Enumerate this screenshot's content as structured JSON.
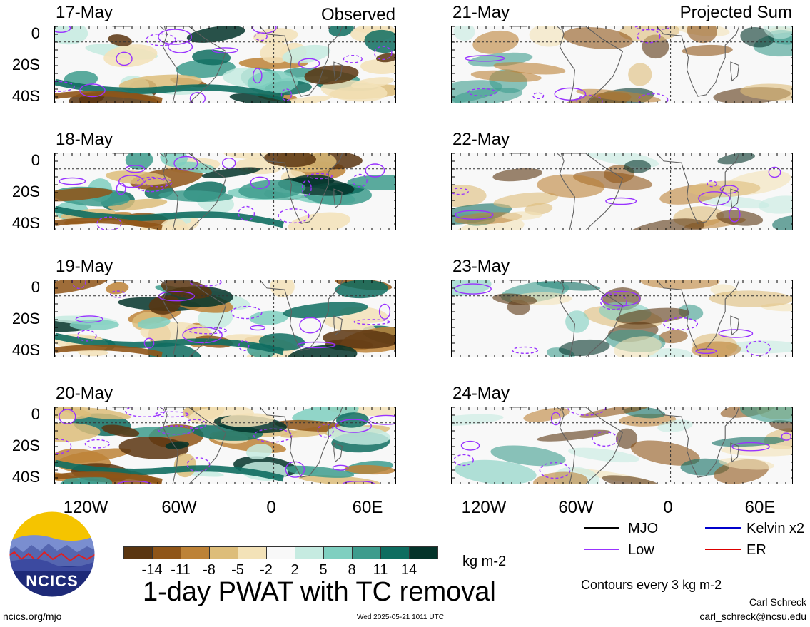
{
  "header": {
    "observed_label": "Observed",
    "projected_label": "Projected Sum"
  },
  "panels": {
    "observed": [
      {
        "date": "17-May"
      },
      {
        "date": "18-May"
      },
      {
        "date": "19-May"
      },
      {
        "date": "20-May"
      }
    ],
    "projected": [
      {
        "date": "21-May"
      },
      {
        "date": "22-May"
      },
      {
        "date": "23-May"
      },
      {
        "date": "24-May"
      }
    ]
  },
  "axes": {
    "lat_ticks": [
      "0",
      "20S",
      "40S"
    ],
    "lon_ticks": [
      "120W",
      "60W",
      "0",
      "60E"
    ]
  },
  "colorbar": {
    "labels": [
      "-14",
      "-11",
      "-8",
      "-5",
      "-2",
      "2",
      "5",
      "8",
      "11",
      "14"
    ],
    "colors": [
      "#5a3510",
      "#8f5518",
      "#bd8237",
      "#ddbd7a",
      "#f3e2b8",
      "#f8f8f8",
      "#c6ebe1",
      "#7fcfc0",
      "#3e9c8d",
      "#0f6d60",
      "#04342a"
    ],
    "units": "kg m-2"
  },
  "title": "1-day PWAT with TC removal",
  "legend": {
    "items": [
      {
        "label": "MJO",
        "color": "#000000"
      },
      {
        "label": "Kelvin x2",
        "color": "#0000cc"
      },
      {
        "label": "Low",
        "color": "#9933ff"
      },
      {
        "label": "ER",
        "color": "#dd0000"
      }
    ],
    "contour_note": "Contours every 3 kg m-2"
  },
  "footer": {
    "logo_text": "NCICS",
    "site": "ncics.org/mjo",
    "timestamp": "Wed 2025-05-21 1011 UTC",
    "author": "Carl Schreck",
    "email": "carl_schreck@ncsu.edu"
  }
}
